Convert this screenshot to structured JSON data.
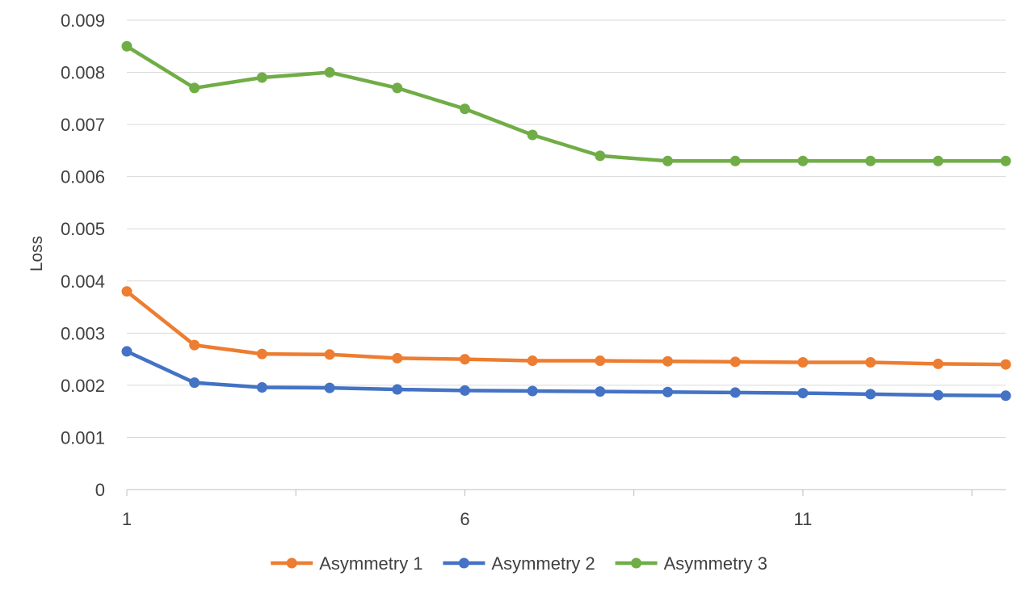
{
  "chart_data": {
    "type": "line",
    "title": "",
    "xlabel": "",
    "ylabel": "Loss",
    "x": [
      1,
      2,
      3,
      4,
      5,
      6,
      7,
      8,
      9,
      10,
      11,
      12,
      13,
      14
    ],
    "x_ticks": [
      1,
      6,
      11
    ],
    "xlim": [
      1,
      14
    ],
    "ylim": [
      0,
      0.009
    ],
    "y_ticks": [
      "0",
      "0.001",
      "0.002",
      "0.003",
      "0.004",
      "0.005",
      "0.006",
      "0.007",
      "0.008",
      "0.009"
    ],
    "grid": true,
    "legend_position": "bottom",
    "series": [
      {
        "name": "Asymmetry 1",
        "color": "#ED7D31",
        "values": [
          0.0038,
          0.00277,
          0.0026,
          0.00259,
          0.00252,
          0.0025,
          0.00247,
          0.00247,
          0.00246,
          0.00245,
          0.00244,
          0.00244,
          0.00241,
          0.0024
        ]
      },
      {
        "name": "Asymmetry 2",
        "color": "#4472C4",
        "values": [
          0.00265,
          0.00205,
          0.00196,
          0.00195,
          0.00192,
          0.0019,
          0.00189,
          0.00188,
          0.00187,
          0.00186,
          0.00185,
          0.00183,
          0.00181,
          0.0018
        ]
      },
      {
        "name": "Asymmetry 3",
        "color": "#70AD47",
        "values": [
          0.0085,
          0.0077,
          0.0079,
          0.008,
          0.0077,
          0.0073,
          0.0068,
          0.0064,
          0.0063,
          0.0063,
          0.0063,
          0.0063,
          0.0063,
          0.0063
        ]
      }
    ]
  }
}
